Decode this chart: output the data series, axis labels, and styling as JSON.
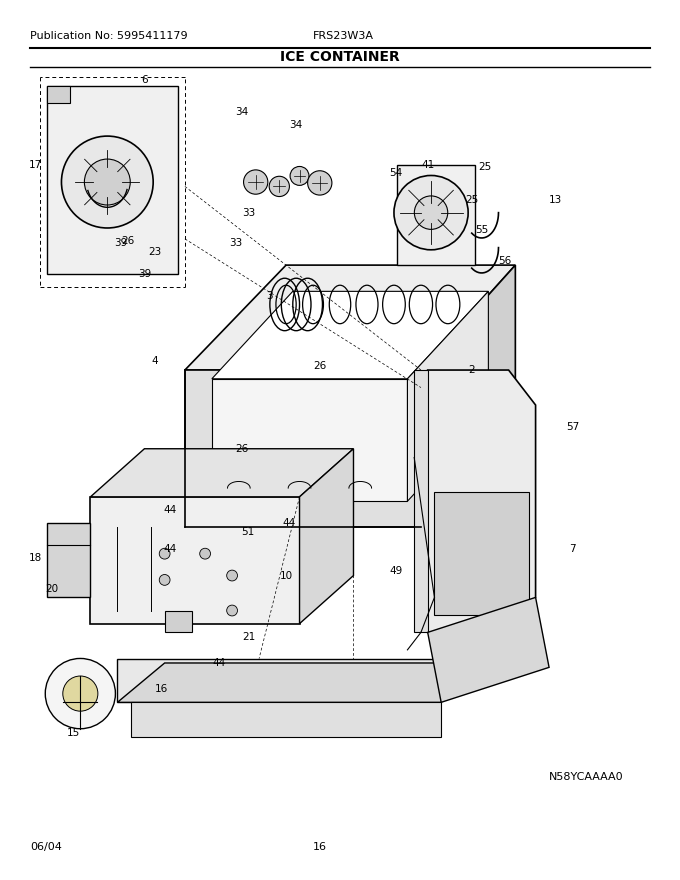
{
  "pub_no": "Publication No: 5995411179",
  "model": "FRS23W3A",
  "title": "ICE CONTAINER",
  "date": "06/04",
  "page": "16",
  "part_id": "N58YCAAAA0",
  "bg_color": "#ffffff",
  "line_color": "#000000",
  "title_fontsize": 10,
  "header_fontsize": 8,
  "label_fontsize": 7.5
}
